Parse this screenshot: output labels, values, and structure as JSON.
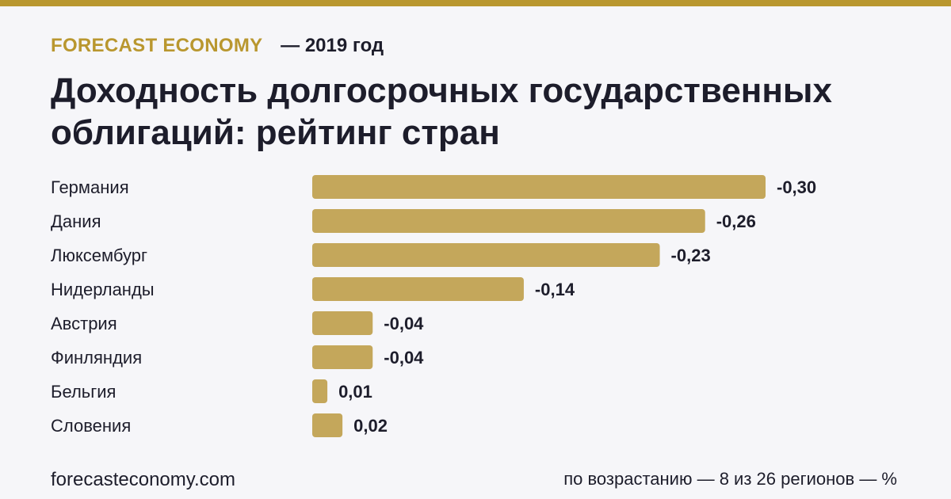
{
  "header": {
    "brand": "FORECAST ECONOMY",
    "year": "— 2019 год"
  },
  "title": "Доходность долгосрочных государственных облигаций: рейтинг стран",
  "chart_data": {
    "type": "bar",
    "orientation": "horizontal",
    "categories": [
      "Германия",
      "Дания",
      "Люксембург",
      "Нидерланды",
      "Австрия",
      "Финляндия",
      "Бельгия",
      "Словения"
    ],
    "values": [
      -0.3,
      -0.26,
      -0.23,
      -0.14,
      -0.04,
      -0.04,
      0.01,
      0.02
    ],
    "value_labels": [
      "-0,30",
      "-0,26",
      "-0,23",
      "-0,14",
      "-0,04",
      "-0,04",
      "0,01",
      "0,02"
    ],
    "bar_color": "#c4a75b",
    "grid": false,
    "legend": "none"
  },
  "footer": {
    "site": "forecasteconomy.com",
    "note": "по возрастанию — 8 из 26 регионов — %"
  },
  "colors": {
    "accent": "#b9972f",
    "bar": "#c4a75b",
    "text": "#1d1d2b",
    "background": "#f6f6f9"
  }
}
